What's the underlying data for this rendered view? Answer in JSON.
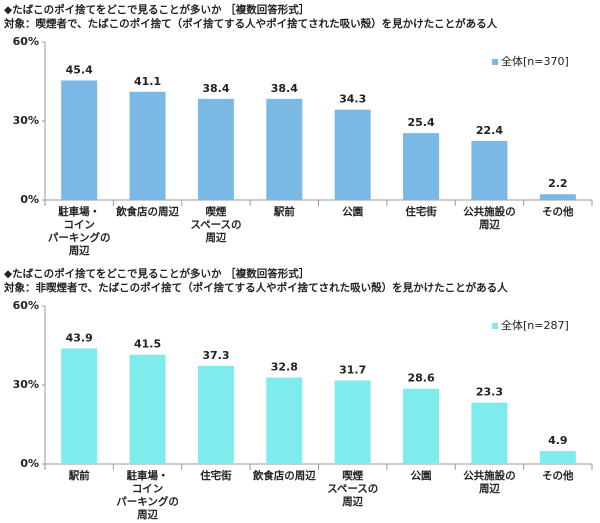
{
  "chart_data": [
    {
      "type": "bar",
      "title": "◆たばこのポイ捨てをどこで見ることが多いか ［複数回答形式］",
      "subtitle": "対象：喫煙者で、たばこのポイ捨て（ポイ捨てする人やポイ捨てされた吸い殻）を見かけたことがある人",
      "categories": [
        "駐車場・\nコイン\nパーキングの\n周辺",
        "飲食店の周辺",
        "喫煙\nスペースの\n周辺",
        "駅前",
        "公園",
        "住宅街",
        "公共施設の\n周辺",
        "その他"
      ],
      "series": [
        {
          "name": "全体[n=370]",
          "color": "#7ab8e6",
          "values": [
            45.4,
            41.1,
            38.4,
            38.4,
            34.3,
            25.4,
            22.4,
            2.2
          ]
        }
      ],
      "ylim": [
        0,
        60
      ],
      "yticks": [
        {
          "value": 0,
          "label": "0%"
        },
        {
          "value": 30,
          "label": "30%"
        },
        {
          "value": 60,
          "label": "60%"
        }
      ],
      "legend": "top-right"
    },
    {
      "type": "bar",
      "title": "◆たばこのポイ捨てをどこで見ることが多いか ［複数回答形式］",
      "subtitle": "対象：非喫煙者で、たばこのポイ捨て（ポイ捨てする人やポイ捨てされた吸い殻）を見かけたことがある人",
      "categories": [
        "駅前",
        "駐車場・\nコイン\nパーキングの\n周辺",
        "住宅街",
        "飲食店の周辺",
        "喫煙\nスペースの\n周辺",
        "公園",
        "公共施設の\n周辺",
        "その他"
      ],
      "series": [
        {
          "name": "全体[n=287]",
          "color": "#7eecec",
          "values": [
            43.9,
            41.5,
            37.3,
            32.8,
            31.7,
            28.6,
            23.3,
            4.9
          ]
        }
      ],
      "ylim": [
        0,
        60
      ],
      "yticks": [
        {
          "value": 0,
          "label": "0%"
        },
        {
          "value": 30,
          "label": "30%"
        },
        {
          "value": 60,
          "label": "60%"
        }
      ],
      "legend": "top-right"
    }
  ]
}
